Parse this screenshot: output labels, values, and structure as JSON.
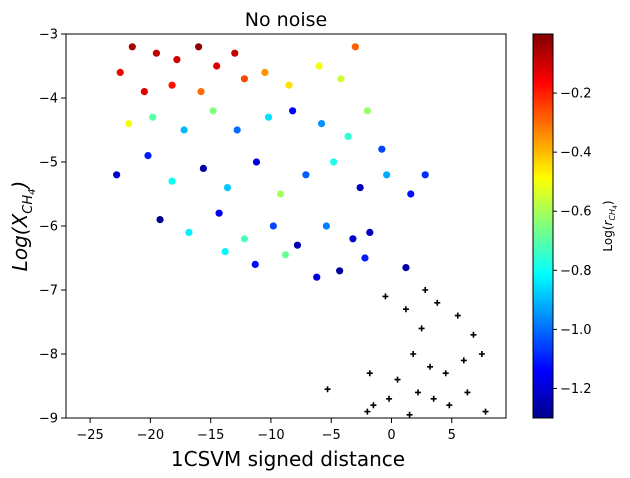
{
  "chart_data": {
    "type": "scatter",
    "title": "No noise",
    "xlabel": "1CSVM signed distance",
    "ylabel": "Log(X_CH4)",
    "xlim": [
      -27,
      9.5
    ],
    "ylim": [
      -9,
      -3
    ],
    "x_ticks": [
      -25,
      -20,
      -15,
      -10,
      -5,
      0,
      5
    ],
    "y_ticks": [
      -9,
      -8,
      -7,
      -6,
      -5,
      -4,
      -3
    ],
    "colorbar": {
      "label": "Log(r_CH4)",
      "colormap": "jet",
      "range": [
        -1.3,
        0
      ],
      "ticks": [
        -0.2,
        -0.4,
        -0.6,
        -0.8,
        -1.0,
        -1.2
      ]
    },
    "series": [
      {
        "marker": "filled circle",
        "color_encoding": "Log(r_CH4) via jet colormap",
        "x_range": [
          -25,
          4
        ],
        "y_range": [
          -7,
          -3
        ],
        "points": [
          [
            -21.5,
            -3.2,
            -0.05
          ],
          [
            -19.5,
            -3.3,
            -0.08
          ],
          [
            -17.8,
            -3.4,
            -0.1
          ],
          [
            -16,
            -3.2,
            -0.02
          ],
          [
            -14.5,
            -3.5,
            -0.12
          ],
          [
            -13,
            -3.3,
            -0.09
          ],
          [
            -22.5,
            -3.6,
            -0.15
          ],
          [
            -20.5,
            -3.9,
            -0.12
          ],
          [
            -18.2,
            -3.8,
            -0.18
          ],
          [
            -15.8,
            -3.9,
            -0.3
          ],
          [
            -12.2,
            -3.7,
            -0.25
          ],
          [
            -10.5,
            -3.6,
            -0.35
          ],
          [
            -8.5,
            -3.8,
            -0.45
          ],
          [
            -6,
            -3.5,
            -0.5
          ],
          [
            -4.2,
            -3.7,
            -0.55
          ],
          [
            -3,
            -3.2,
            -0.28
          ],
          [
            -21.8,
            -4.4,
            -0.5
          ],
          [
            -19.8,
            -4.3,
            -0.7
          ],
          [
            -17.2,
            -4.5,
            -0.9
          ],
          [
            -14.8,
            -4.2,
            -0.65
          ],
          [
            -12.8,
            -4.5,
            -1.0
          ],
          [
            -10.2,
            -4.3,
            -0.85
          ],
          [
            -8.2,
            -4.2,
            -1.15
          ],
          [
            -5.8,
            -4.4,
            -0.95
          ],
          [
            -3.6,
            -4.6,
            -0.75
          ],
          [
            -2,
            -4.2,
            -0.62
          ],
          [
            -0.8,
            -4.8,
            -1.05
          ],
          [
            -22.8,
            -5.2,
            -1.2
          ],
          [
            -20.2,
            -4.9,
            -1.1
          ],
          [
            -18.2,
            -5.3,
            -0.8
          ],
          [
            -15.6,
            -5.1,
            -1.25
          ],
          [
            -13.6,
            -5.4,
            -0.88
          ],
          [
            -11.2,
            -5.0,
            -1.18
          ],
          [
            -9.2,
            -5.5,
            -0.6
          ],
          [
            -7.1,
            -5.2,
            -1.02
          ],
          [
            -4.8,
            -5.0,
            -0.78
          ],
          [
            -2.6,
            -5.4,
            -1.22
          ],
          [
            -0.4,
            -5.2,
            -0.92
          ],
          [
            1.6,
            -5.5,
            -1.12
          ],
          [
            2.8,
            -5.2,
            -1.08
          ],
          [
            -19.2,
            -5.9,
            -1.28
          ],
          [
            -16.8,
            -6.1,
            -0.83
          ],
          [
            -14.3,
            -5.8,
            -1.16
          ],
          [
            -12.2,
            -6.2,
            -0.72
          ],
          [
            -9.8,
            -6.0,
            -1.05
          ],
          [
            -7.8,
            -6.3,
            -1.24
          ],
          [
            -5.4,
            -6.0,
            -0.98
          ],
          [
            -3.2,
            -6.2,
            -1.2
          ],
          [
            -1.8,
            -6.1,
            -1.22
          ],
          [
            -13.8,
            -6.4,
            -0.82
          ],
          [
            -11.3,
            -6.6,
            -1.12
          ],
          [
            -8.8,
            -6.45,
            -0.68
          ],
          [
            -6.2,
            -6.8,
            -1.18
          ],
          [
            -4.3,
            -6.7,
            -1.26
          ],
          [
            -2.2,
            -6.5,
            -1.1
          ],
          [
            1.2,
            -6.65,
            -1.25
          ]
        ]
      },
      {
        "marker": "plus",
        "color": "#000000",
        "x_range": [
          -5.5,
          8
        ],
        "y_range": [
          -9,
          -6.9
        ],
        "points": [
          [
            -0.5,
            -7.1
          ],
          [
            1.2,
            -7.3
          ],
          [
            2.5,
            -7.6
          ],
          [
            3.8,
            -7.2
          ],
          [
            5.5,
            -7.4
          ],
          [
            6.8,
            -7.7
          ],
          [
            1.8,
            -8.0
          ],
          [
            3.2,
            -8.2
          ],
          [
            4.5,
            -8.3
          ],
          [
            6.0,
            -8.1
          ],
          [
            7.5,
            -8.0
          ],
          [
            2.2,
            -8.6
          ],
          [
            3.5,
            -8.7
          ],
          [
            4.8,
            -8.8
          ],
          [
            6.3,
            -8.6
          ],
          [
            7.8,
            -8.9
          ],
          [
            1.5,
            -8.95
          ],
          [
            0.5,
            -8.4
          ],
          [
            -0.2,
            -8.7
          ],
          [
            -1.5,
            -8.8
          ],
          [
            -1.8,
            -8.3
          ],
          [
            -5.3,
            -8.55
          ],
          [
            -2,
            -8.9
          ],
          [
            2.8,
            -7.0
          ]
        ]
      }
    ]
  }
}
